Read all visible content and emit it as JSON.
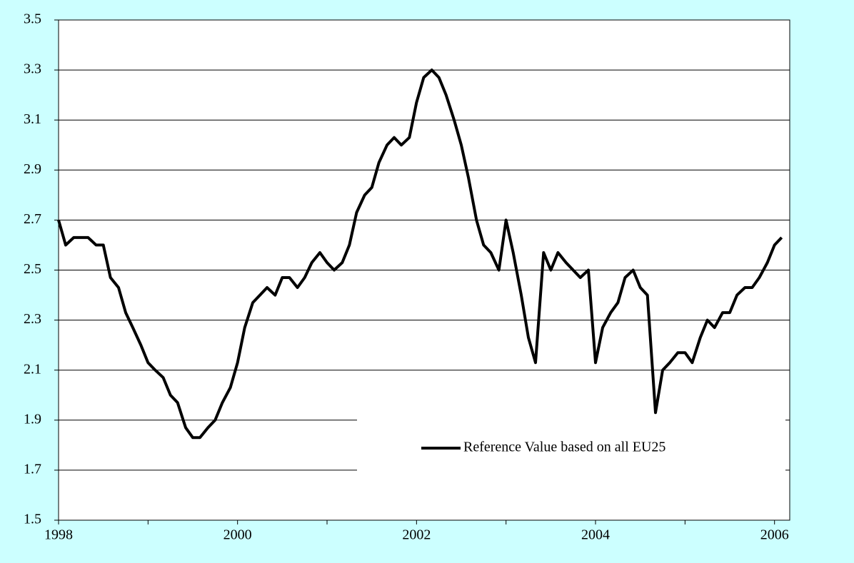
{
  "chart_data": {
    "type": "line",
    "x": [
      1998,
      1998.08,
      1998.17,
      1998.25,
      1998.33,
      1998.42,
      1998.5,
      1998.58,
      1998.67,
      1998.75,
      1998.83,
      1998.92,
      1999,
      1999.08,
      1999.17,
      1999.25,
      1999.33,
      1999.42,
      1999.5,
      1999.58,
      1999.67,
      1999.75,
      1999.83,
      1999.92,
      2000,
      2000.08,
      2000.17,
      2000.25,
      2000.33,
      2000.42,
      2000.5,
      2000.58,
      2000.67,
      2000.75,
      2000.83,
      2000.92,
      2001,
      2001.08,
      2001.17,
      2001.25,
      2001.33,
      2001.42,
      2001.5,
      2001.58,
      2001.67,
      2001.75,
      2001.83,
      2001.92,
      2002,
      2002.08,
      2002.17,
      2002.25,
      2002.33,
      2002.42,
      2002.5,
      2002.58,
      2002.67,
      2002.75,
      2002.83,
      2002.92,
      2003,
      2003.08,
      2003.17,
      2003.25,
      2003.33,
      2003.42,
      2003.5,
      2003.58,
      2003.67,
      2003.75,
      2003.83,
      2003.92,
      2004,
      2004.08,
      2004.17,
      2004.25,
      2004.33,
      2004.42,
      2004.5,
      2004.58,
      2004.67,
      2004.75,
      2004.83,
      2004.92,
      2005,
      2005.08,
      2005.17,
      2005.25,
      2005.33,
      2005.42,
      2005.5,
      2005.58,
      2005.67,
      2005.75,
      2005.83,
      2005.92,
      2006,
      2006.08
    ],
    "series": [
      {
        "name": "Reference Value based on all EU25",
        "color": "#000000",
        "values": [
          2.7,
          2.6,
          2.63,
          2.63,
          2.63,
          2.6,
          2.6,
          2.47,
          2.43,
          2.33,
          2.27,
          2.2,
          2.13,
          2.1,
          2.07,
          2.0,
          1.97,
          1.87,
          1.83,
          1.83,
          1.87,
          1.9,
          1.97,
          2.03,
          2.13,
          2.27,
          2.37,
          2.4,
          2.43,
          2.4,
          2.47,
          2.47,
          2.43,
          2.47,
          2.53,
          2.57,
          2.53,
          2.5,
          2.53,
          2.6,
          2.73,
          2.8,
          2.83,
          2.93,
          3.0,
          3.03,
          3.0,
          3.03,
          3.17,
          3.27,
          3.3,
          3.27,
          3.2,
          3.1,
          3.0,
          2.87,
          2.7,
          2.6,
          2.57,
          2.5,
          2.7,
          2.57,
          2.4,
          2.23,
          2.13,
          2.57,
          2.5,
          2.57,
          2.53,
          2.5,
          2.47,
          2.5,
          2.13,
          2.27,
          2.33,
          2.37,
          2.47,
          2.5,
          2.43,
          2.4,
          1.93,
          2.1,
          2.13,
          2.17,
          2.17,
          2.13,
          2.23,
          2.3,
          2.27,
          2.33,
          2.33,
          2.4,
          2.43,
          2.43,
          2.47,
          2.53,
          2.6,
          2.63
        ]
      }
    ],
    "xlim": [
      1998,
      2006.17
    ],
    "xticks": [
      1998,
      2000,
      2002,
      2004,
      2006
    ],
    "x_minor_ticks": [
      1999,
      2001,
      2003,
      2005
    ],
    "ylim": [
      1.5,
      3.5
    ],
    "yticks": [
      1.5,
      1.7,
      1.9,
      2.1,
      2.3,
      2.5,
      2.7,
      2.9,
      3.1,
      3.3,
      3.5
    ],
    "grid": true,
    "legend": "lower-right"
  }
}
